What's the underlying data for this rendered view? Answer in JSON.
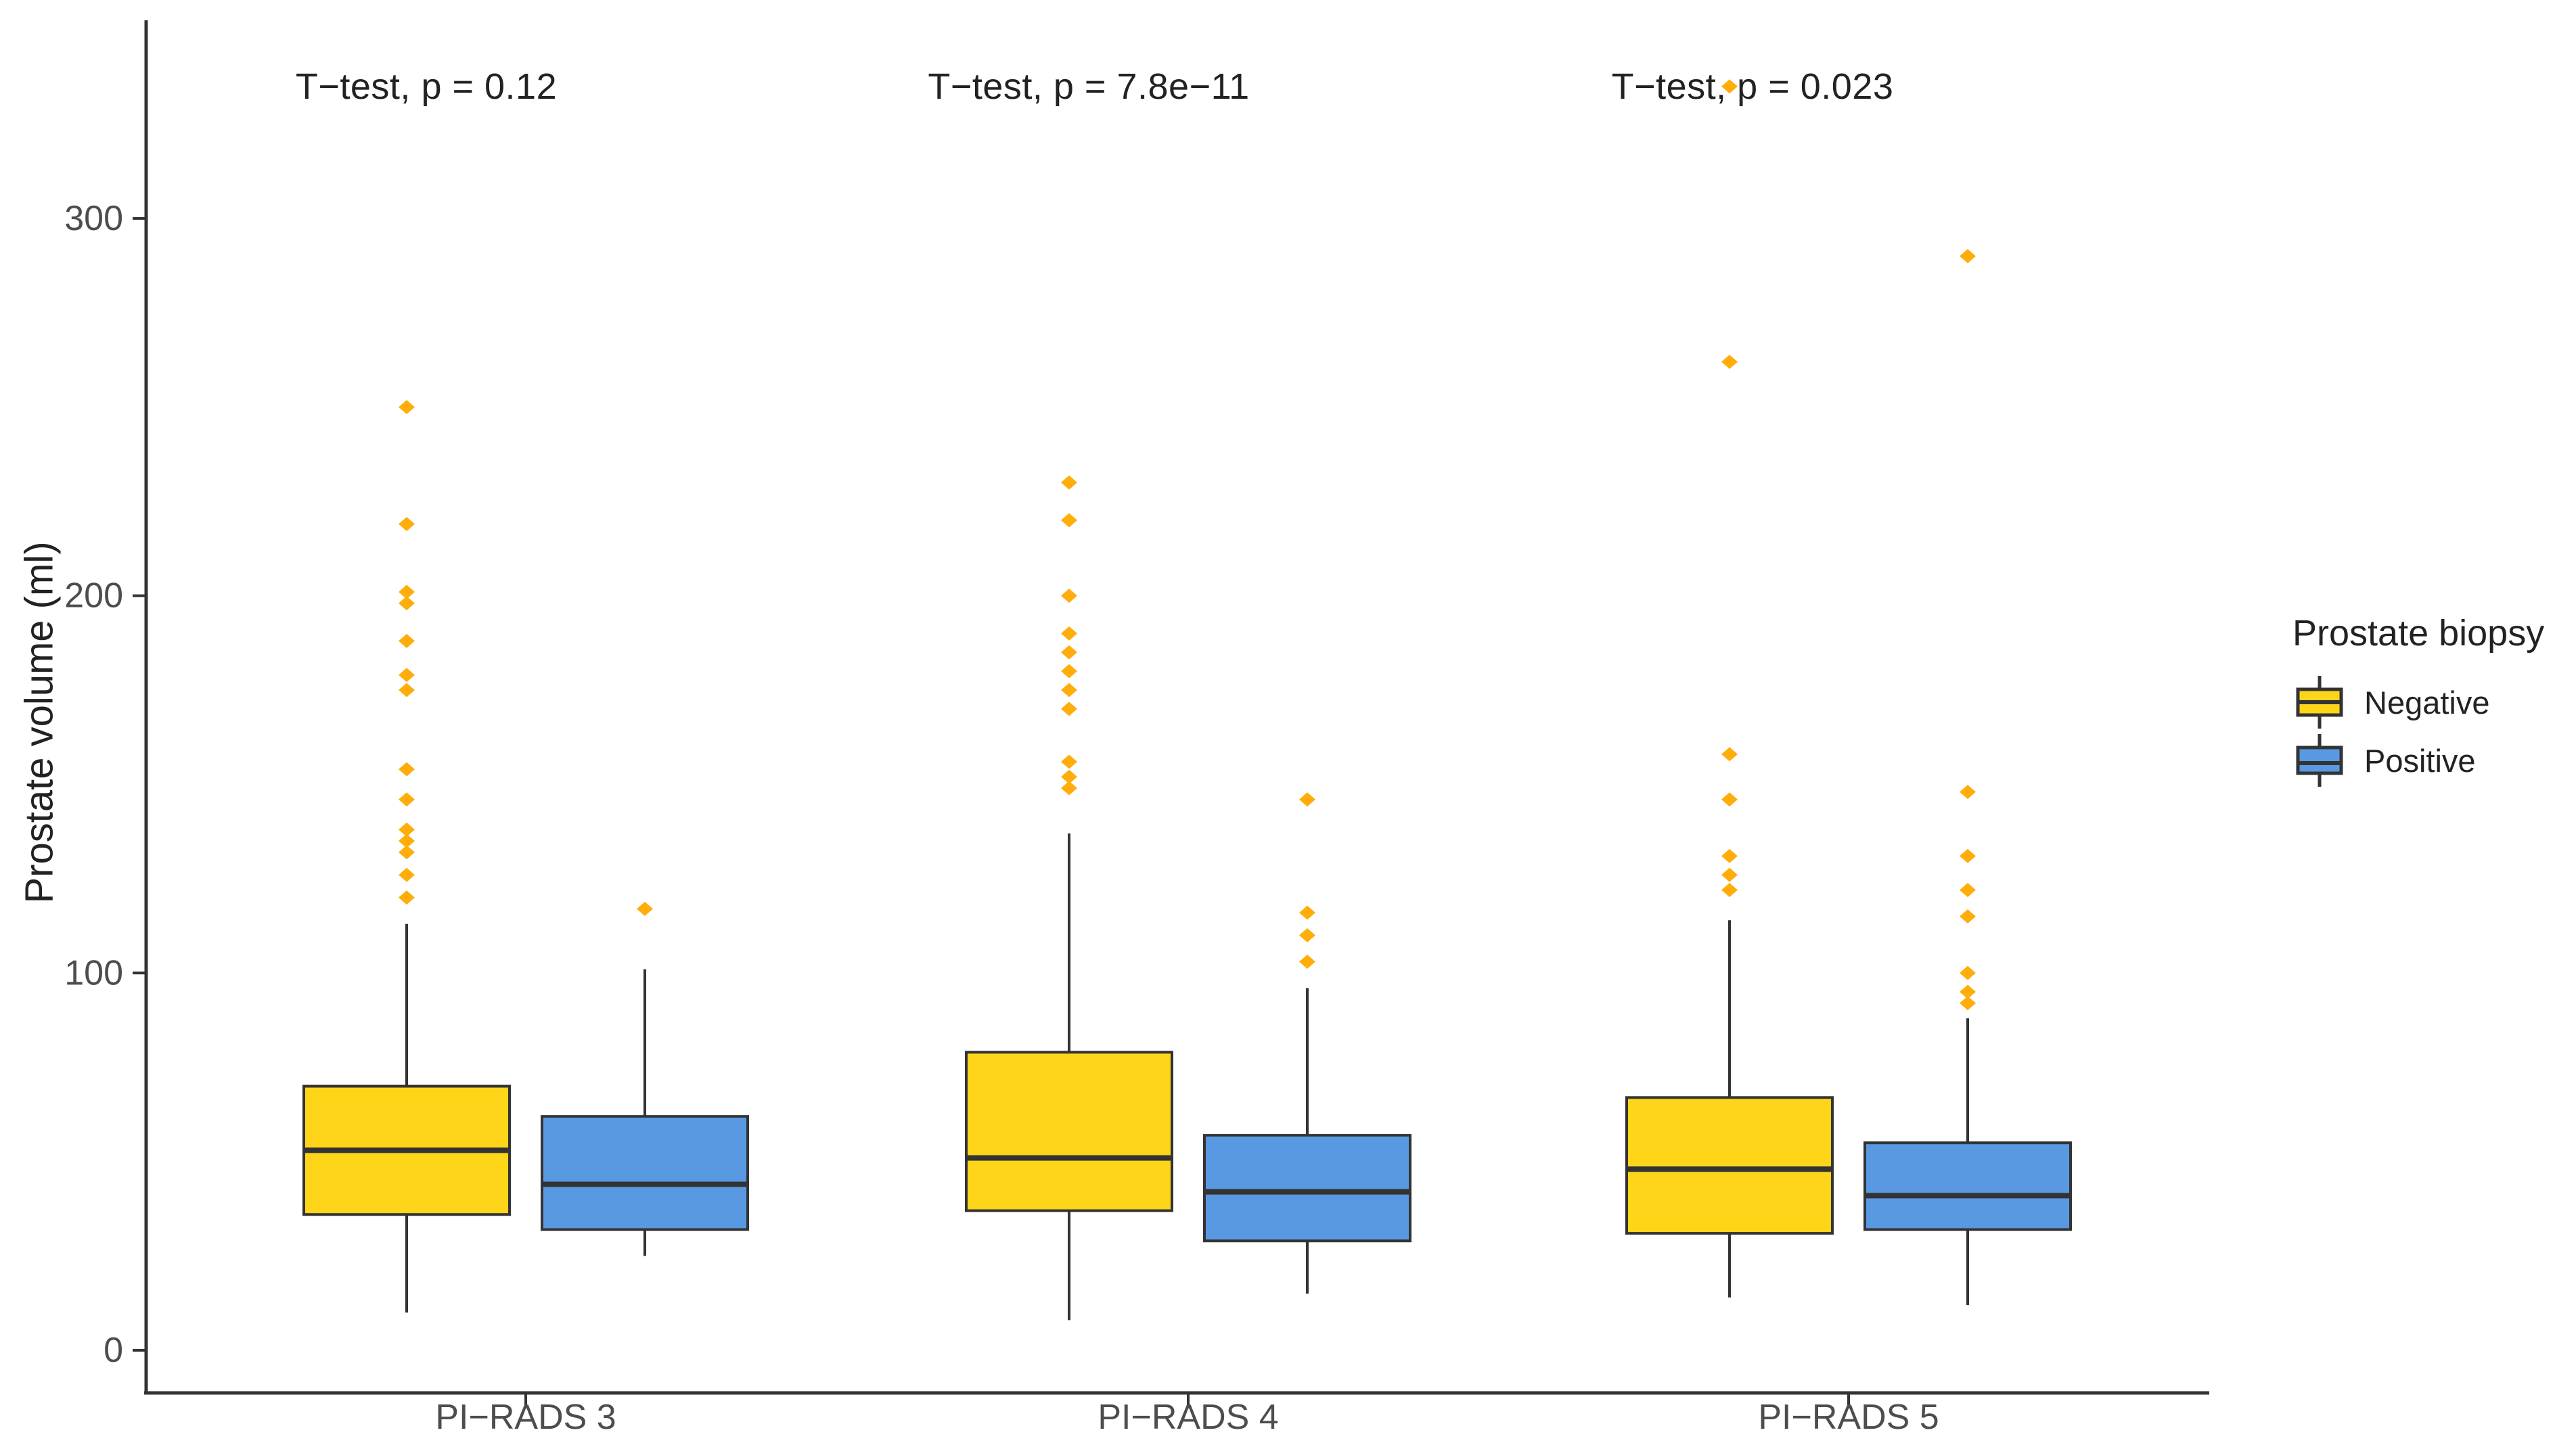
{
  "chart_data": {
    "type": "boxplot",
    "title": "",
    "ylabel": "Prostate volume (ml)",
    "xlabel": "",
    "y_ticks": [
      0,
      100,
      200,
      300
    ],
    "ylim": [
      -11,
      360
    ],
    "grid": false,
    "legend_position": "right",
    "categories": [
      "PI−RADS 3",
      "PI−RADS 4",
      "PI−RADS 5"
    ],
    "series_names": [
      "Negative",
      "Positive"
    ],
    "annotations": [
      "T−test, p = 0.12",
      "T−test, p = 7.8e−11",
      "T−test, p = 0.023"
    ],
    "legend": {
      "title": "Prostate biopsy",
      "items": [
        {
          "label": "Negative",
          "color": "#FFD519"
        },
        {
          "label": "Positive",
          "color": "#5899E2"
        }
      ]
    },
    "colors": {
      "negative_fill": "#FFD519",
      "positive_fill": "#5899E2",
      "outlier": "#FFAD0A",
      "box_border": "#333333",
      "axis": "#333333",
      "tick_text": "#4d4d4d"
    },
    "groups": [
      {
        "category": "PI−RADS 3",
        "boxes": [
          {
            "series": "Negative",
            "whisker_low": 10,
            "q1": 36,
            "median": 53,
            "q3": 70,
            "whisker_high": 113,
            "outliers": [
              250,
              219,
              201,
              198,
              188,
              179,
              175,
              154,
              146,
              138,
              135,
              132,
              126,
              120
            ]
          },
          {
            "series": "Positive",
            "whisker_low": 25,
            "q1": 32,
            "median": 44,
            "q3": 62,
            "whisker_high": 101,
            "outliers": [
              117
            ]
          }
        ]
      },
      {
        "category": "PI−RADS 4",
        "boxes": [
          {
            "series": "Negative",
            "whisker_low": 8,
            "q1": 37,
            "median": 51,
            "q3": 79,
            "whisker_high": 137,
            "outliers": [
              230,
              220,
              200,
              190,
              185,
              180,
              175,
              170,
              156,
              152,
              149
            ]
          },
          {
            "series": "Positive",
            "whisker_low": 15,
            "q1": 29,
            "median": 42,
            "q3": 57,
            "whisker_high": 96,
            "outliers": [
              146,
              116,
              110,
              103
            ]
          }
        ]
      },
      {
        "category": "PI−RADS 5",
        "boxes": [
          {
            "series": "Negative",
            "whisker_low": 14,
            "q1": 31,
            "median": 48,
            "q3": 67,
            "whisker_high": 114,
            "outliers": [
              335,
              262,
              158,
              146,
              131,
              126,
              122
            ]
          },
          {
            "series": "Positive",
            "whisker_low": 12,
            "q1": 32,
            "median": 41,
            "q3": 55,
            "whisker_high": 88,
            "outliers": [
              290,
              148,
              131,
              122,
              115,
              100,
              95,
              92
            ]
          }
        ]
      }
    ]
  }
}
